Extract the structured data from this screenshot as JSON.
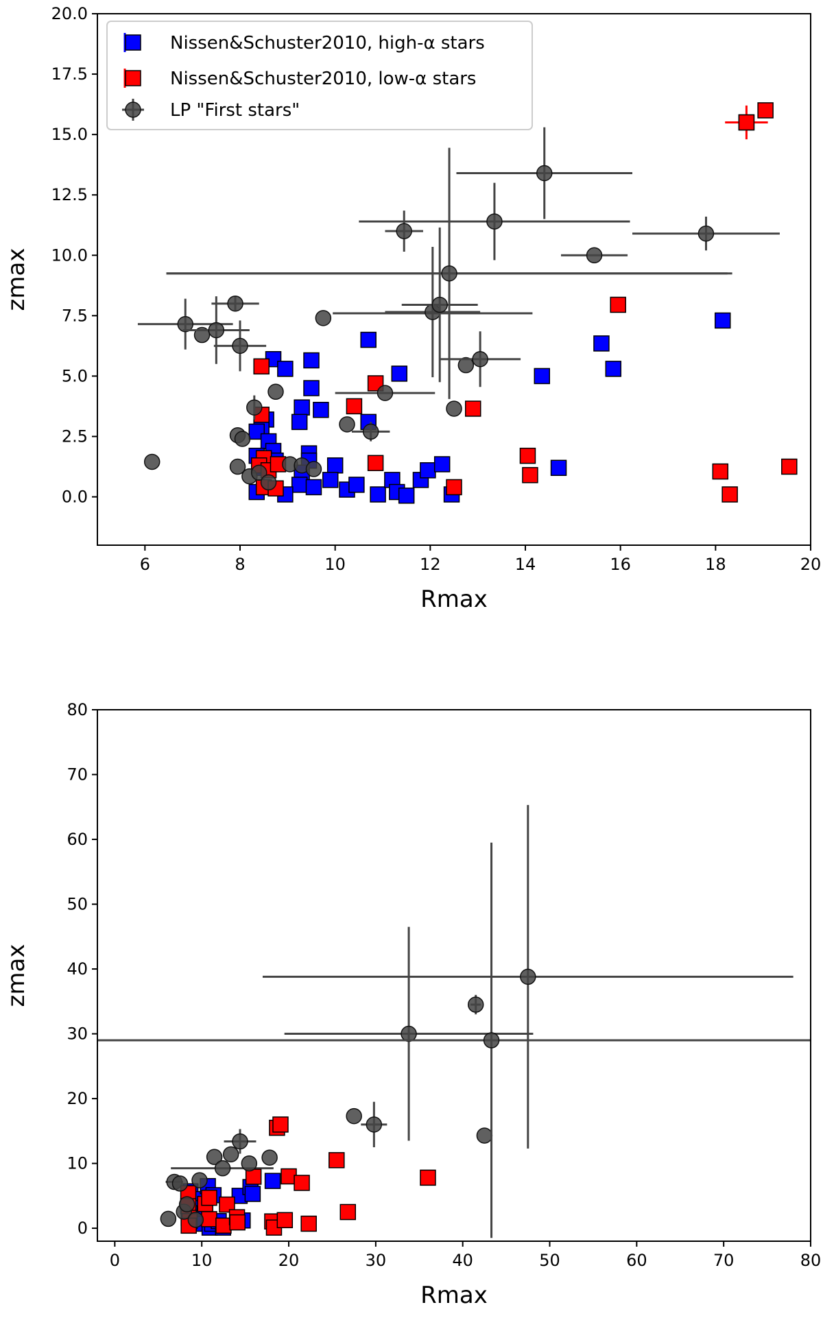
{
  "chart_data": [
    {
      "type": "scatter",
      "title": "",
      "xlabel": "Rmax",
      "ylabel": "zmax",
      "xlim": [
        5,
        20
      ],
      "ylim": [
        -2,
        20
      ],
      "xticks": [
        "6",
        "8",
        "10",
        "12",
        "14",
        "16",
        "18",
        "20"
      ],
      "yticks": [
        "0.0",
        "2.5",
        "5.0",
        "7.5",
        "10.0",
        "12.5",
        "15.0",
        "17.5",
        "20.0"
      ],
      "legend_position": "top-left",
      "colors": {
        "high_alpha": "#0000ff",
        "low_alpha": "#ff0000",
        "lp": "#444444"
      },
      "series": [
        {
          "name": "Nissen&Schuster2010, high-α stars",
          "marker": "square",
          "points": [
            [
              8.7,
              5.7
            ],
            [
              8.95,
              5.3
            ],
            [
              9.5,
              5.65
            ],
            [
              9.5,
              4.5
            ],
            [
              9.3,
              3.7
            ],
            [
              9.7,
              3.6
            ],
            [
              9.25,
              3.1
            ],
            [
              8.55,
              3.2
            ],
            [
              8.45,
              2.9
            ],
            [
              8.35,
              2.7
            ],
            [
              8.6,
              2.3
            ],
            [
              8.7,
              1.9
            ],
            [
              8.35,
              1.7
            ],
            [
              8.5,
              1.2
            ],
            [
              8.75,
              1.5
            ],
            [
              9.45,
              1.8
            ],
            [
              9.45,
              1.5
            ],
            [
              10.0,
              1.3
            ],
            [
              9.3,
              1.0
            ],
            [
              9.25,
              0.5
            ],
            [
              9.55,
              0.4
            ],
            [
              9.9,
              0.7
            ],
            [
              10.25,
              0.3
            ],
            [
              10.45,
              0.5
            ],
            [
              8.35,
              0.2
            ],
            [
              8.95,
              0.1
            ],
            [
              10.9,
              0.1
            ],
            [
              11.2,
              0.7
            ],
            [
              11.3,
              0.2
            ],
            [
              11.5,
              0.05
            ],
            [
              11.8,
              0.7
            ],
            [
              11.95,
              1.1
            ],
            [
              12.25,
              1.35
            ],
            [
              12.45,
              0.1
            ],
            [
              10.7,
              6.5
            ],
            [
              11.35,
              5.1
            ],
            [
              10.7,
              3.1
            ],
            [
              14.35,
              5.0
            ],
            [
              15.6,
              6.35
            ],
            [
              15.85,
              5.3
            ],
            [
              14.7,
              1.2
            ],
            [
              18.15,
              7.3
            ]
          ]
        },
        {
          "name": "Nissen&Schuster2010, low-α stars",
          "marker": "square",
          "points": [
            [
              8.45,
              5.4
            ],
            [
              8.45,
              3.4
            ],
            [
              8.5,
              1.6
            ],
            [
              8.4,
              1.3
            ],
            [
              8.6,
              1.1
            ],
            [
              8.8,
              1.35
            ],
            [
              8.5,
              0.4
            ],
            [
              8.75,
              0.35
            ],
            [
              10.4,
              3.75
            ],
            [
              10.85,
              4.7
            ],
            [
              10.85,
              1.4
            ],
            [
              12.9,
              3.65
            ],
            [
              12.5,
              0.4
            ],
            [
              14.05,
              1.7
            ],
            [
              14.1,
              0.9
            ],
            [
              15.95,
              7.95
            ],
            [
              18.1,
              1.05
            ],
            [
              18.3,
              0.1
            ],
            [
              19.55,
              1.25
            ],
            [
              18.65,
              15.5
            ],
            [
              19.05,
              16.0
            ]
          ]
        },
        {
          "name": "LP \"First stars\"",
          "marker": "circle",
          "points": [
            [
              6.85,
              7.15,
              1.0,
              1.05
            ],
            [
              7.2,
              6.7,
              0,
              0
            ],
            [
              7.5,
              6.9,
              0.7,
              1.4
            ],
            [
              7.9,
              8.0,
              0.5,
              0.3
            ],
            [
              8.0,
              6.25,
              0.55,
              1.05
            ],
            [
              7.95,
              2.55,
              0,
              0
            ],
            [
              8.05,
              2.4,
              0,
              0
            ],
            [
              8.3,
              3.7,
              0,
              0.5
            ],
            [
              7.95,
              1.25,
              0,
              0
            ],
            [
              8.2,
              0.85,
              0,
              0
            ],
            [
              8.4,
              1.0,
              0,
              0
            ],
            [
              8.6,
              0.6,
              0,
              0
            ],
            [
              8.75,
              4.35,
              0,
              0
            ],
            [
              9.05,
              1.35,
              0,
              0
            ],
            [
              9.3,
              1.3,
              0,
              0
            ],
            [
              9.55,
              1.15,
              0,
              0
            ],
            [
              6.15,
              1.45,
              0,
              0
            ],
            [
              9.75,
              7.4,
              0,
              0
            ],
            [
              10.25,
              3.0,
              0,
              0
            ],
            [
              10.75,
              2.7,
              0.4,
              0.4
            ],
            [
              11.05,
              4.3,
              1.05,
              0
            ],
            [
              11.45,
              11.0,
              0.4,
              0.85
            ],
            [
              12.05,
              7.65,
              1.0,
              2.7
            ],
            [
              12.2,
              7.95,
              0.8,
              3.2
            ],
            [
              12.4,
              9.25,
              5.95,
              5.2
            ],
            [
              12.5,
              3.65,
              0,
              0
            ],
            [
              12.75,
              5.45,
              0,
              0
            ],
            [
              13.05,
              5.7,
              0.85,
              1.15
            ],
            [
              13.35,
              11.4,
              2.85,
              1.6
            ],
            [
              14.4,
              13.4,
              1.85,
              1.9
            ],
            [
              15.45,
              10.0,
              0.7,
              0
            ],
            [
              17.8,
              10.9,
              1.55,
              0.7
            ]
          ]
        }
      ],
      "horizontal_error_bars": [
        {
          "y": 9.25,
          "x0": 6.45,
          "x1": 18.25
        },
        {
          "y": 7.6,
          "x0": 9.95,
          "x1": 14.15
        }
      ]
    },
    {
      "type": "scatter",
      "title": "",
      "xlabel": "Rmax",
      "ylabel": "zmax",
      "xlim": [
        -2,
        80
      ],
      "ylim": [
        -2,
        80
      ],
      "xticks": [
        "0",
        "10",
        "20",
        "30",
        "40",
        "50",
        "60",
        "70",
        "80"
      ],
      "yticks": [
        "0",
        "10",
        "20",
        "30",
        "40",
        "50",
        "60",
        "70",
        "80"
      ],
      "series": [
        {
          "name": "Nissen&Schuster2010, high-α stars",
          "marker": "square",
          "points": [
            [
              8.7,
              5.7
            ],
            [
              9.5,
              4.5
            ],
            [
              9.3,
              3.1
            ],
            [
              8.6,
              2.3
            ],
            [
              9.45,
              1.5
            ],
            [
              9.3,
              1.0
            ],
            [
              9.9,
              0.7
            ],
            [
              10.9,
              0.1
            ],
            [
              11.2,
              0.7
            ],
            [
              11.95,
              1.1
            ],
            [
              12.45,
              0.1
            ],
            [
              10.7,
              6.5
            ],
            [
              11.35,
              5.1
            ],
            [
              14.35,
              5.0
            ],
            [
              15.6,
              6.35
            ],
            [
              15.85,
              5.3
            ],
            [
              14.7,
              1.2
            ],
            [
              18.15,
              7.3
            ]
          ]
        },
        {
          "name": "Nissen&Schuster2010, low-α stars",
          "marker": "square",
          "points": [
            [
              8.45,
              5.4
            ],
            [
              8.45,
              3.4
            ],
            [
              8.5,
              1.6
            ],
            [
              8.6,
              1.1
            ],
            [
              8.5,
              0.4
            ],
            [
              10.4,
              3.75
            ],
            [
              10.85,
              4.7
            ],
            [
              10.85,
              1.4
            ],
            [
              12.9,
              3.65
            ],
            [
              12.5,
              0.4
            ],
            [
              14.05,
              1.7
            ],
            [
              14.1,
              0.9
            ],
            [
              15.95,
              7.95
            ],
            [
              18.1,
              1.05
            ],
            [
              18.3,
              0.1
            ],
            [
              19.55,
              1.25
            ],
            [
              18.65,
              15.5
            ],
            [
              19.05,
              16.0
            ],
            [
              20.0,
              8.0
            ],
            [
              21.5,
              7.0
            ],
            [
              22.3,
              0.7
            ],
            [
              25.5,
              10.5
            ],
            [
              26.8,
              2.5
            ],
            [
              36.0,
              7.8
            ]
          ]
        },
        {
          "name": "LP \"First stars\"",
          "marker": "circle",
          "points": [
            [
              6.15,
              1.45,
              0,
              0
            ],
            [
              6.85,
              7.15,
              1.0,
              0
            ],
            [
              7.5,
              6.9,
              0,
              0
            ],
            [
              7.95,
              2.55,
              0,
              0
            ],
            [
              8.3,
              3.7,
              0,
              0
            ],
            [
              9.3,
              1.3,
              0,
              0
            ],
            [
              9.75,
              7.4,
              0,
              0
            ],
            [
              11.45,
              11.0,
              0,
              0
            ],
            [
              12.4,
              9.25,
              0,
              0
            ],
            [
              13.35,
              11.4,
              0,
              0
            ],
            [
              14.4,
              13.4,
              1.85,
              1.9
            ],
            [
              15.45,
              10.0,
              0,
              0
            ],
            [
              17.8,
              10.9,
              0,
              0
            ],
            [
              27.5,
              17.3,
              0,
              0
            ],
            [
              29.8,
              16.0,
              1.5,
              3.5
            ],
            [
              33.8,
              30.0,
              14.3,
              16.5
            ],
            [
              41.5,
              34.5,
              0.6,
              1.5
            ],
            [
              42.5,
              14.3,
              0,
              0
            ],
            [
              43.3,
              29.0,
              45.3,
              30.5
            ],
            [
              47.5,
              38.8,
              30.5,
              26.5
            ]
          ]
        }
      ],
      "horizontal_error_bars": [
        {
          "y": 9.25,
          "x0": 6.45,
          "x1": 18.25
        }
      ]
    }
  ]
}
